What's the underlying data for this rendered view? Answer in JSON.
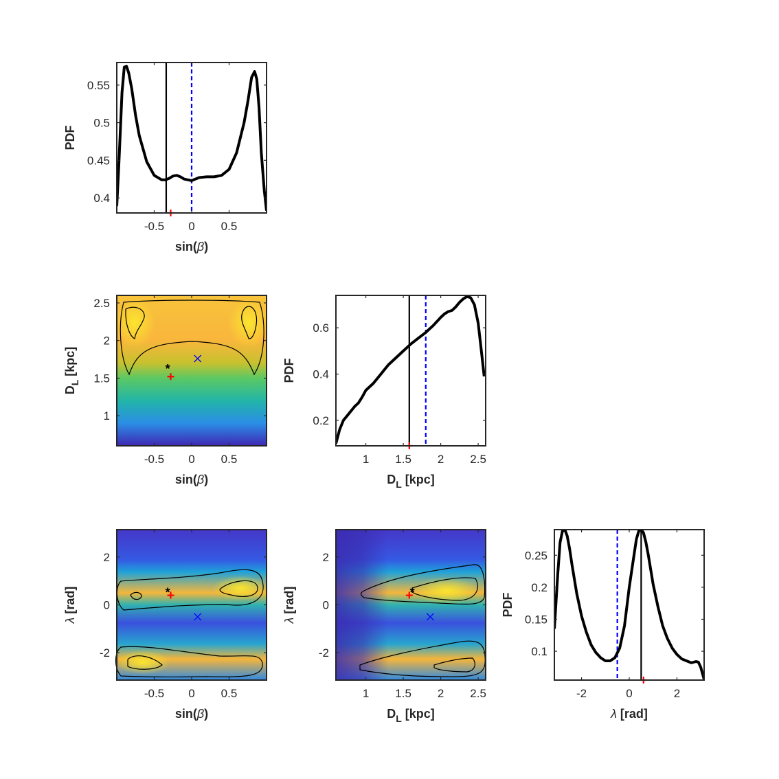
{
  "chart_data": [
    {
      "id": "p11",
      "type": "line",
      "xlabel": "sin(β)",
      "ylabel": "PDF",
      "xlim": [
        -1,
        1
      ],
      "ylim": [
        0.38,
        0.58
      ],
      "xticks": [
        -0.5,
        0,
        0.5
      ],
      "xtick_labels": [
        "-0.5",
        "0",
        "0.5"
      ],
      "yticks": [
        0.4,
        0.45,
        0.5,
        0.55
      ],
      "ytick_labels": [
        "0.4",
        "0.45",
        "0.5",
        "0.55"
      ],
      "series": [
        {
          "x": [
            -1.0,
            -0.97,
            -0.93,
            -0.9,
            -0.87,
            -0.84,
            -0.8,
            -0.75,
            -0.7,
            -0.6,
            -0.5,
            -0.4,
            -0.35,
            -0.3,
            -0.25,
            -0.2,
            -0.15,
            -0.1,
            -0.05,
            0,
            0.05,
            0.1,
            0.2,
            0.3,
            0.4,
            0.5,
            0.6,
            0.7,
            0.75,
            0.8,
            0.84,
            0.87,
            0.9,
            0.93,
            0.97,
            1.0
          ],
          "y": [
            0.389,
            0.45,
            0.54,
            0.574,
            0.575,
            0.566,
            0.545,
            0.51,
            0.483,
            0.448,
            0.43,
            0.424,
            0.424,
            0.426,
            0.429,
            0.43,
            0.428,
            0.425,
            0.424,
            0.423,
            0.425,
            0.427,
            0.428,
            0.428,
            0.43,
            0.438,
            0.46,
            0.5,
            0.528,
            0.56,
            0.568,
            0.558,
            0.52,
            0.46,
            0.41,
            0.383
          ]
        }
      ],
      "vlines": [
        {
          "x": -0.34,
          "style": "solid",
          "color": "#000000"
        },
        {
          "x": 0.0,
          "style": "dashed",
          "color": "#0000ff"
        }
      ],
      "markers": [
        {
          "x": -0.28,
          "y": 0.38,
          "symbol": "+",
          "color": "#ff0000"
        }
      ]
    },
    {
      "id": "p21",
      "type": "heatmap",
      "xlabel": "sin(β)",
      "ylabel": "D_L [kpc]",
      "xlim": [
        -1,
        1
      ],
      "ylim": [
        0.6,
        2.6
      ],
      "xticks": [
        -0.5,
        0,
        0.5
      ],
      "xtick_labels": [
        "-0.5",
        "0",
        "0.5"
      ],
      "yticks": [
        1,
        1.5,
        2,
        2.5
      ],
      "ytick_labels": [
        "1",
        "1.5",
        "2",
        "2.5"
      ],
      "markers": [
        {
          "x": -0.32,
          "y": 1.63,
          "symbol": "*",
          "color": "#000000"
        },
        {
          "x": -0.28,
          "y": 1.52,
          "symbol": "+",
          "color": "#ff0000"
        },
        {
          "x": 0.08,
          "y": 1.76,
          "symbol": "x",
          "color": "#0000ff"
        }
      ]
    },
    {
      "id": "p22",
      "type": "line",
      "xlabel": "D_L [kpc]",
      "ylabel": "PDF",
      "xlim": [
        0.6,
        2.6
      ],
      "ylim": [
        0.09,
        0.74
      ],
      "xticks": [
        1,
        1.5,
        2,
        2.5
      ],
      "xtick_labels": [
        "1",
        "1.5",
        "2",
        "2.5"
      ],
      "yticks": [
        0.2,
        0.4,
        0.6
      ],
      "ytick_labels": [
        "0.2",
        "0.4",
        "0.6"
      ],
      "series": [
        {
          "x": [
            0.6,
            0.65,
            0.7,
            0.75,
            0.8,
            0.85,
            0.9,
            0.95,
            1.0,
            1.05,
            1.1,
            1.2,
            1.3,
            1.4,
            1.5,
            1.6,
            1.7,
            1.8,
            1.9,
            2.0,
            2.05,
            2.1,
            2.15,
            2.2,
            2.25,
            2.3,
            2.35,
            2.4,
            2.45,
            2.5,
            2.55,
            2.58
          ],
          "y": [
            0.1,
            0.16,
            0.2,
            0.22,
            0.24,
            0.26,
            0.275,
            0.3,
            0.33,
            0.345,
            0.36,
            0.4,
            0.44,
            0.47,
            0.5,
            0.53,
            0.555,
            0.58,
            0.61,
            0.645,
            0.66,
            0.67,
            0.675,
            0.69,
            0.71,
            0.725,
            0.735,
            0.73,
            0.7,
            0.62,
            0.48,
            0.39
          ]
        }
      ],
      "vlines": [
        {
          "x": 1.58,
          "style": "solid",
          "color": "#000000"
        },
        {
          "x": 1.8,
          "style": "dashed",
          "color": "#0000ff"
        }
      ],
      "markers": [
        {
          "x": 1.58,
          "y": 0.09,
          "symbol": "+",
          "color": "#ff0000"
        }
      ]
    },
    {
      "id": "p31",
      "type": "heatmap",
      "xlabel": "sin(β)",
      "ylabel": "λ [rad]",
      "xlim": [
        -1,
        1
      ],
      "ylim": [
        -3.14,
        3.14
      ],
      "xticks": [
        -0.5,
        0,
        0.5
      ],
      "xtick_labels": [
        "-0.5",
        "0",
        "0.5"
      ],
      "yticks": [
        -2,
        0,
        2
      ],
      "ytick_labels": [
        "-2",
        "0",
        "2"
      ],
      "markers": [
        {
          "x": -0.32,
          "y": 0.55,
          "symbol": "*",
          "color": "#000000"
        },
        {
          "x": -0.28,
          "y": 0.4,
          "symbol": "+",
          "color": "#ff0000"
        },
        {
          "x": 0.08,
          "y": -0.5,
          "symbol": "x",
          "color": "#0000ff"
        }
      ]
    },
    {
      "id": "p32",
      "type": "heatmap",
      "xlabel": "D_L [kpc]",
      "ylabel": "λ [rad]",
      "xlim": [
        0.6,
        2.6
      ],
      "ylim": [
        -3.14,
        3.14
      ],
      "xticks": [
        1,
        1.5,
        2,
        2.5
      ],
      "xtick_labels": [
        "1",
        "1.5",
        "2",
        "2.5"
      ],
      "yticks": [
        -2,
        0,
        2
      ],
      "ytick_labels": [
        "-2",
        "0",
        "2"
      ],
      "markers": [
        {
          "x": 1.62,
          "y": 0.55,
          "symbol": "*",
          "color": "#000000"
        },
        {
          "x": 1.58,
          "y": 0.4,
          "symbol": "+",
          "color": "#ff0000"
        },
        {
          "x": 1.86,
          "y": -0.5,
          "symbol": "x",
          "color": "#0000ff"
        }
      ]
    },
    {
      "id": "p33",
      "type": "line",
      "xlabel": "λ [rad]",
      "ylabel": "PDF",
      "xlim": [
        -3.14,
        3.14
      ],
      "ylim": [
        0.055,
        0.29
      ],
      "xticks": [
        -2,
        0,
        2
      ],
      "xtick_labels": [
        "-2",
        "0",
        "2"
      ],
      "yticks": [
        0.1,
        0.15,
        0.2,
        0.25
      ],
      "ytick_labels": [
        "0.1",
        "0.15",
        "0.2",
        "0.25"
      ],
      "series": [
        {
          "x": [
            -3.14,
            -3.0,
            -2.9,
            -2.8,
            -2.7,
            -2.6,
            -2.5,
            -2.4,
            -2.2,
            -2.0,
            -1.8,
            -1.6,
            -1.4,
            -1.2,
            -1.0,
            -0.8,
            -0.6,
            -0.4,
            -0.2,
            0.0,
            0.2,
            0.3,
            0.4,
            0.5,
            0.6,
            0.7,
            0.8,
            1.0,
            1.2,
            1.4,
            1.6,
            1.8,
            2.0,
            2.2,
            2.4,
            2.6,
            2.8,
            2.9,
            3.0,
            3.14
          ],
          "y": [
            0.135,
            0.22,
            0.27,
            0.288,
            0.29,
            0.28,
            0.26,
            0.235,
            0.19,
            0.155,
            0.13,
            0.11,
            0.098,
            0.09,
            0.085,
            0.085,
            0.09,
            0.105,
            0.14,
            0.2,
            0.25,
            0.275,
            0.288,
            0.29,
            0.285,
            0.27,
            0.25,
            0.205,
            0.17,
            0.14,
            0.12,
            0.105,
            0.095,
            0.088,
            0.085,
            0.082,
            0.084,
            0.083,
            0.075,
            0.056
          ]
        }
      ],
      "vlines": [
        {
          "x": 0.5,
          "style": "solid",
          "color": "#000000"
        },
        {
          "x": -0.5,
          "style": "dashed",
          "color": "#0000ff"
        }
      ],
      "markers": [
        {
          "x": 0.6,
          "y": 0.055,
          "symbol": "+",
          "color": "#ff0000"
        }
      ]
    }
  ]
}
